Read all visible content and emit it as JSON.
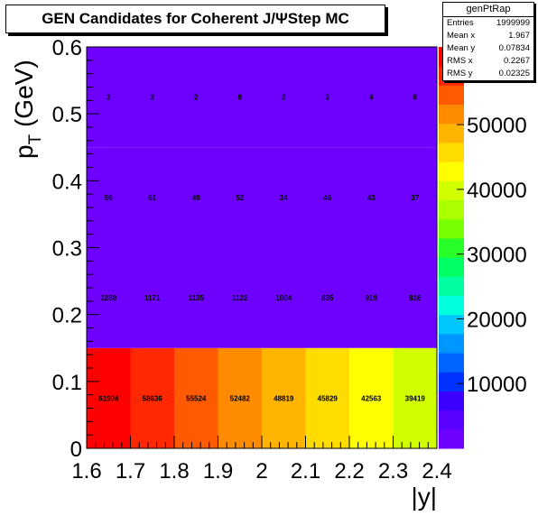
{
  "chart_data": {
    "type": "heatmap",
    "title": "GEN Candidates for Coherent J/ΨStep MC",
    "xlabel": "|y|",
    "ylabel_main": "p",
    "ylabel_sub": "T",
    "ylabel_unit": "(GeV)",
    "x_edges": [
      1.6,
      1.7,
      1.8,
      1.9,
      2.0,
      2.1,
      2.2,
      2.3,
      2.4
    ],
    "y_edges": [
      0.0,
      0.15,
      0.3,
      0.45,
      0.6
    ],
    "xlim": [
      1.6,
      2.4
    ],
    "ylim": [
      0,
      0.6
    ],
    "zlim": [
      0,
      62000
    ],
    "x_ticks": [
      1.6,
      1.7,
      1.8,
      1.9,
      2,
      2.1,
      2.2,
      2.3,
      2.4
    ],
    "x_tick_labels": [
      "1.6",
      "1.7",
      "1.8",
      "1.9",
      "2",
      "2.1",
      "2.2",
      "2.3",
      "2.4"
    ],
    "y_ticks": [
      0,
      0.1,
      0.2,
      0.3,
      0.4,
      0.5,
      0.6
    ],
    "y_tick_labels": [
      "0",
      "0.1",
      "0.2",
      "0.3",
      "0.4",
      "0.5",
      "0.6"
    ],
    "z_ticks": [
      10000,
      20000,
      30000,
      40000,
      50000
    ],
    "z_tick_labels": [
      "10000",
      "20000",
      "30000",
      "40000",
      "50000"
    ],
    "values": [
      [
        61904,
        58636,
        55524,
        52482,
        48819,
        45829,
        42563,
        39419
      ],
      [
        1288,
        1171,
        1135,
        1122,
        1004,
        835,
        919,
        816
      ],
      [
        56,
        61,
        49,
        52,
        34,
        46,
        43,
        37
      ],
      [
        3,
        3,
        2,
        8,
        2,
        2,
        4,
        6
      ]
    ],
    "palette": [
      "#6e00ff",
      "#5a00ff",
      "#3c00ff",
      "#0032ff",
      "#0064ff",
      "#0096ff",
      "#00c8ff",
      "#00ffdc",
      "#00ffa0",
      "#00ff64",
      "#28ff28",
      "#78ff00",
      "#aaff00",
      "#d2ff00",
      "#ffff00",
      "#ffdc00",
      "#ffb400",
      "#ff8c00",
      "#ff5a00",
      "#ff2800",
      "#ff0000"
    ]
  },
  "stats": {
    "name": "genPtRap",
    "rows": [
      {
        "label": "Entries",
        "value": "1999999"
      },
      {
        "label": "Mean x",
        "value": "1.967"
      },
      {
        "label": "Mean y",
        "value": "0.07834"
      },
      {
        "label": "RMS x",
        "value": "0.2267"
      },
      {
        "label": "RMS y",
        "value": "0.02325"
      }
    ]
  }
}
